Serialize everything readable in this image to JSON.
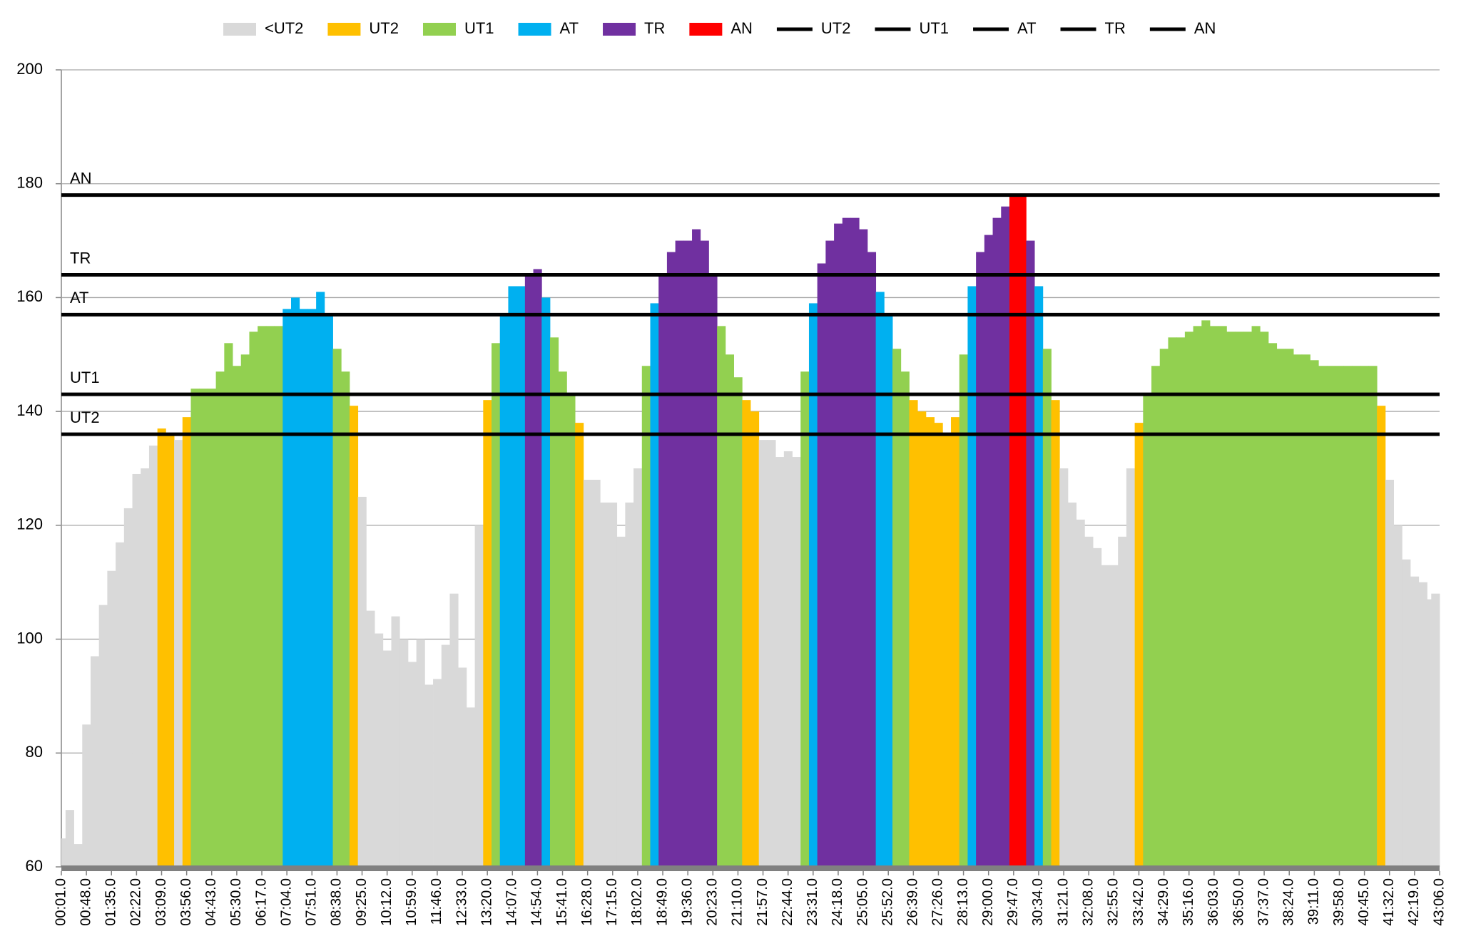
{
  "chart_data": {
    "type": "bar",
    "zones": [
      {
        "name": "<UT2",
        "color": "#d9d9d9"
      },
      {
        "name": "UT2",
        "color": "#ffc000"
      },
      {
        "name": "UT1",
        "color": "#92d050"
      },
      {
        "name": "AT",
        "color": "#00b0f0"
      },
      {
        "name": "TR",
        "color": "#7030a0"
      },
      {
        "name": "AN",
        "color": "#ff0000"
      }
    ],
    "thresholds": [
      {
        "name": "UT2",
        "value": 136,
        "color": "#000000"
      },
      {
        "name": "UT1",
        "value": 143,
        "color": "#000000"
      },
      {
        "name": "AT",
        "value": 157,
        "color": "#000000"
      },
      {
        "name": "TR",
        "value": 164,
        "color": "#000000"
      },
      {
        "name": "AN",
        "value": 178,
        "color": "#000000"
      }
    ],
    "categories": [
      "00:01.0",
      null,
      null,
      "00:48.0",
      null,
      null,
      "01:35.0",
      null,
      null,
      "02:22.0",
      null,
      null,
      "03:09.0",
      null,
      null,
      "03:56.0",
      null,
      null,
      "04:43.0",
      null,
      null,
      "05:30.0",
      null,
      null,
      "06:17.0",
      null,
      null,
      "07:04.0",
      null,
      null,
      "07:51.0",
      null,
      null,
      "08:38.0",
      null,
      null,
      "09:25.0",
      null,
      null,
      "10:12.0",
      null,
      null,
      "10:59.0",
      null,
      null,
      "11:46.0",
      null,
      null,
      "12:33.0",
      null,
      null,
      "13:20.0",
      null,
      null,
      "14:07.0",
      null,
      null,
      "14:54.0",
      null,
      null,
      "15:41.0",
      null,
      null,
      "16:28.0",
      null,
      null,
      "17:15.0",
      null,
      null,
      "18:02.0",
      null,
      null,
      "18:49.0",
      null,
      null,
      "19:36.0",
      null,
      null,
      "20:23.0",
      null,
      null,
      "21:10.0",
      null,
      null,
      "21:57.0",
      null,
      null,
      "22:44.0",
      null,
      null,
      "23:31.0",
      null,
      null,
      "24:18.0",
      null,
      null,
      "25:05.0",
      null,
      null,
      "25:52.0",
      null,
      null,
      "26:39.0",
      null,
      null,
      "27:26.0",
      null,
      null,
      "28:13.0",
      null,
      null,
      "29:00.0",
      null,
      null,
      "29:47.0",
      null,
      null,
      "30:34.0",
      null,
      null,
      "31:21.0",
      null,
      null,
      "32:08.0",
      null,
      null,
      "32:55.0",
      null,
      null,
      "33:42.0",
      null,
      null,
      "34:29.0",
      null,
      null,
      "35:16.0",
      null,
      null,
      "36:03.0",
      null,
      null,
      "36:50.0",
      null,
      null,
      "37:37.0",
      null,
      null,
      "38:24.0",
      null,
      null,
      "39:11.0",
      null,
      null,
      "39:58.0",
      null,
      null,
      "40:45.0",
      null,
      null,
      "41:32.0",
      null,
      null,
      "42:19.0",
      null,
      null,
      "43:06.0"
    ],
    "values": [
      65,
      70,
      64,
      85,
      97,
      106,
      112,
      117,
      123,
      129,
      130,
      134,
      137,
      136,
      135,
      139,
      144,
      144,
      144,
      147,
      152,
      148,
      150,
      154,
      155,
      155,
      155,
      158,
      160,
      158,
      158,
      161,
      157,
      151,
      147,
      141,
      125,
      105,
      101,
      98,
      104,
      100,
      96,
      100,
      92,
      93,
      99,
      108,
      95,
      88,
      120,
      142,
      152,
      157,
      162,
      162,
      164,
      165,
      160,
      153,
      147,
      143,
      138,
      128,
      128,
      124,
      124,
      118,
      124,
      130,
      148,
      159,
      164,
      168,
      170,
      170,
      172,
      170,
      164,
      155,
      150,
      146,
      142,
      140,
      135,
      135,
      132,
      133,
      132,
      147,
      159,
      166,
      170,
      173,
      174,
      174,
      172,
      168,
      161,
      157,
      151,
      147,
      142,
      140,
      139,
      138,
      136,
      139,
      150,
      162,
      168,
      171,
      174,
      176,
      178,
      178,
      170,
      162,
      151,
      142,
      130,
      124,
      121,
      118,
      116,
      113,
      113,
      118,
      130,
      138,
      143,
      148,
      151,
      153,
      153,
      154,
      155,
      156,
      155,
      155,
      154,
      154,
      154,
      155,
      154,
      152,
      151,
      151,
      150,
      150,
      149,
      148,
      148,
      148,
      148,
      148,
      148,
      148,
      141,
      128,
      120,
      114,
      111,
      110,
      107,
      108
    ],
    "ylim": [
      60,
      200
    ],
    "yticks": [
      60,
      80,
      100,
      120,
      140,
      160,
      180,
      200
    ],
    "grid": true
  }
}
